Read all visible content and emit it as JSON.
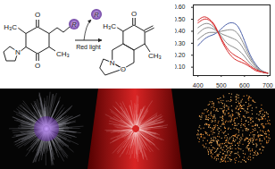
{
  "scheme": {
    "reactant": {
      "methyl_top": "H₃C",
      "methyl_bottom": "CH₃",
      "carbonyl_top": "O",
      "carbonyl_bottom": "O",
      "amine": "N",
      "group": "R"
    },
    "arrow_label": "Red light",
    "released": "R",
    "product": {
      "methyl_top": "H₃C",
      "methyl_bottom": "CH₃",
      "carbonyl_top": "O",
      "ring_oxygen": "O",
      "amine": "N"
    }
  },
  "chart_data": {
    "type": "line",
    "x": [
      400,
      425,
      450,
      475,
      500,
      525,
      550,
      575,
      600,
      625,
      650,
      675,
      700
    ],
    "series": [
      {
        "color": "#4a5fa8",
        "values": [
          0.28,
          0.33,
          0.36,
          0.38,
          0.42,
          0.46,
          0.47,
          0.43,
          0.32,
          0.2,
          0.12,
          0.07,
          0.05
        ]
      },
      {
        "color": "#8a8a8a",
        "values": [
          0.33,
          0.37,
          0.39,
          0.39,
          0.4,
          0.41,
          0.41,
          0.37,
          0.28,
          0.18,
          0.11,
          0.07,
          0.05
        ]
      },
      {
        "color": "#8a8a8a",
        "values": [
          0.38,
          0.42,
          0.43,
          0.41,
          0.38,
          0.36,
          0.34,
          0.31,
          0.24,
          0.16,
          0.1,
          0.06,
          0.05
        ]
      },
      {
        "color": "#8a8a8a",
        "values": [
          0.43,
          0.46,
          0.46,
          0.42,
          0.36,
          0.3,
          0.27,
          0.24,
          0.19,
          0.13,
          0.09,
          0.06,
          0.05
        ]
      },
      {
        "color": "#d62728",
        "values": [
          0.47,
          0.5,
          0.49,
          0.43,
          0.34,
          0.26,
          0.21,
          0.18,
          0.15,
          0.11,
          0.08,
          0.06,
          0.05
        ]
      },
      {
        "color": "#d62728",
        "values": [
          0.49,
          0.52,
          0.5,
          0.44,
          0.33,
          0.24,
          0.18,
          0.15,
          0.13,
          0.1,
          0.07,
          0.06,
          0.05
        ]
      }
    ],
    "xlim": [
      380,
      710
    ],
    "xticks": [
      400,
      500,
      600,
      700
    ],
    "ylim": [
      0.03,
      0.62
    ],
    "yticks": [
      0.1,
      0.2,
      0.3,
      0.4,
      0.5,
      0.6
    ],
    "grid": false
  }
}
